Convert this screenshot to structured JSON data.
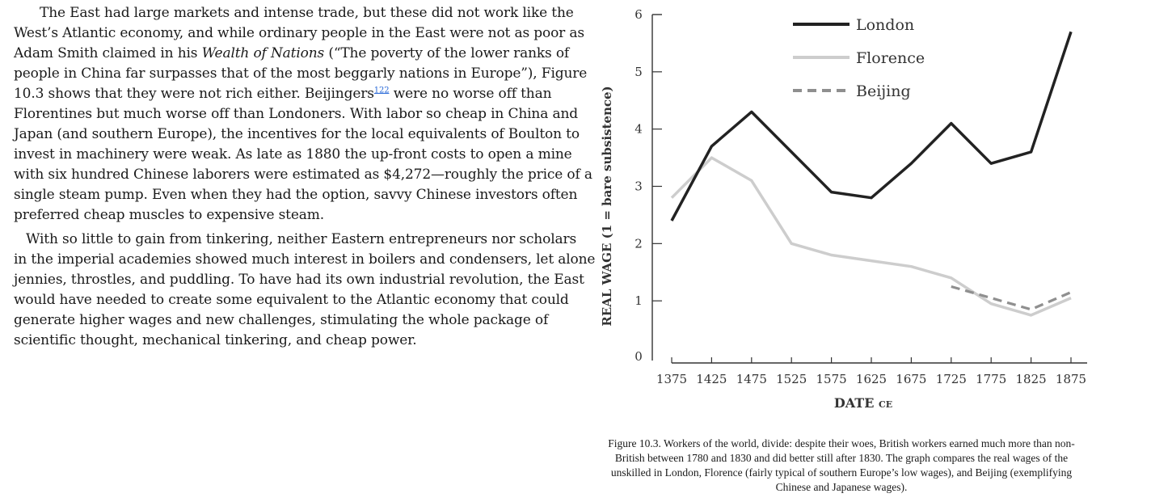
{
  "text": {
    "p1": [
      "The East had large markets and intense trade, but these did not work like the",
      "West’s Atlantic economy, and while ordinary people in the East were not as poor as",
      "Adam Smith claimed in his ",
      "Wealth of Nations",
      " (“The poverty of the lower ranks of",
      "people in China far surpasses that of the most beggarly nations in Europe”), Figure",
      "10.3 shows that they were not rich either. Beijingers",
      "122",
      " were no worse off than",
      "Florentines but much worse off than Londoners. With labor so cheap in China and",
      "Japan (and southern Europe), the incentives for the local equivalents of Boulton to",
      "invest in machinery were weak. As late as 1880 the up-front costs to open a mine",
      "with six hundred Chinese laborers were estimated as $4,272—roughly the price of a",
      "single steam pump. Even when they had the option, savvy Chinese investors often",
      "preferred cheap muscles to expensive steam."
    ],
    "p2": [
      "With so little to gain from tinkering, neither Eastern entrepreneurs nor scholars",
      "in the imperial academies showed much interest in boilers and condensers, let alone",
      "jennies, throstles, and puddling. To have had its own industrial revolution, the East",
      "would have needed to create some equivalent to the Atlantic economy that could",
      "generate higher wages and new challenges, stimulating the whole package of",
      "scientific thought, mechanical tinkering, and cheap power."
    ]
  },
  "caption": [
    "Figure 10.3. Workers of the world, divide: despite their woes, British workers earned much more than non-",
    "British between 1780 and 1830 and did better still after 1830. The graph compares the real wages of the",
    "unskilled in London, Florence (fairly typical of southern Europe’s low wages), and Beijing (exemplifying",
    "Chinese and Japanese wages)."
  ],
  "chart_data": {
    "type": "line",
    "title": "",
    "ylabel": "REAL WAGE (1 = bare subsistence)",
    "xlabel": "DATE",
    "xlabel_suffix": "CE",
    "ylim": [
      0,
      6
    ],
    "xlim": [
      1375,
      1875
    ],
    "xticks": [
      1375,
      1425,
      1475,
      1525,
      1575,
      1625,
      1675,
      1725,
      1775,
      1825,
      1875
    ],
    "yticks": [
      0,
      1,
      2,
      3,
      4,
      5,
      6
    ],
    "legend_position": "top-right",
    "series": [
      {
        "name": "London",
        "color": "#222222",
        "style": "solid",
        "x": [
          1375,
          1425,
          1475,
          1525,
          1575,
          1625,
          1675,
          1725,
          1775,
          1825,
          1875
        ],
        "y": [
          2.4,
          3.7,
          4.3,
          3.6,
          2.9,
          2.8,
          3.4,
          4.1,
          3.4,
          3.6,
          5.7
        ]
      },
      {
        "name": "Florence",
        "color": "#cdcdcd",
        "style": "solid",
        "x": [
          1375,
          1425,
          1475,
          1525,
          1575,
          1625,
          1675,
          1725,
          1775,
          1825,
          1875
        ],
        "y": [
          2.8,
          3.5,
          3.1,
          2.0,
          1.8,
          1.7,
          1.6,
          1.4,
          0.95,
          0.75,
          1.05
        ]
      },
      {
        "name": "Beijing",
        "color": "#8f8f8f",
        "style": "dashed",
        "x": [
          1725,
          1775,
          1825,
          1875
        ],
        "y": [
          1.25,
          1.05,
          0.85,
          1.15
        ]
      }
    ]
  }
}
